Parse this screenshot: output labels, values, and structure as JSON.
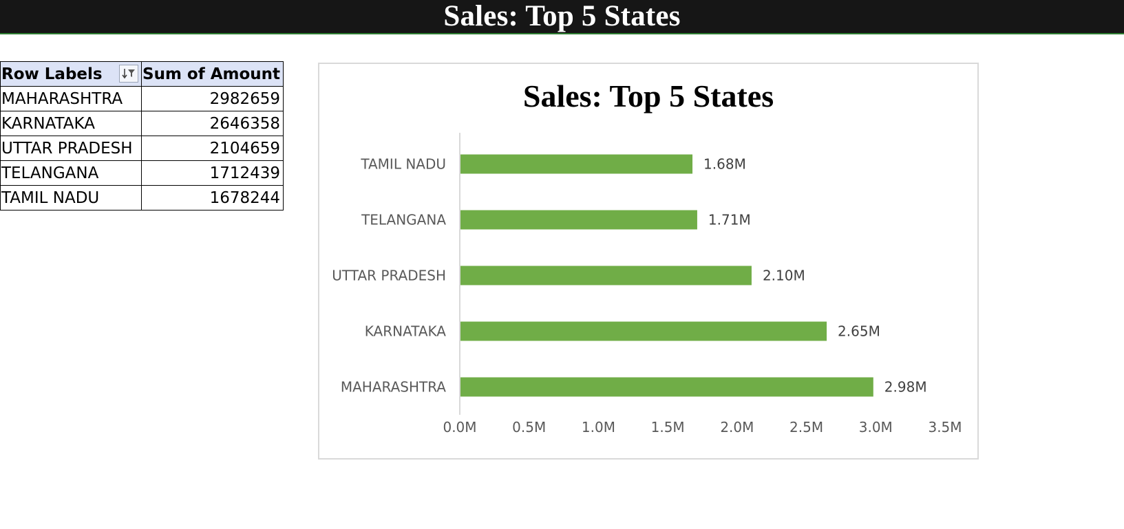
{
  "banner": {
    "title": "Sales: Top 5 States"
  },
  "pivot": {
    "headers": {
      "row_labels": "Row Labels",
      "sum_of_amount": "Sum of Amount"
    },
    "filter_icon": "sort-filter-icon",
    "rows": [
      {
        "label": "MAHARASHTRA",
        "value": "2982659"
      },
      {
        "label": "KARNATAKA",
        "value": "2646358"
      },
      {
        "label": "UTTAR PRADESH",
        "value": "2104659"
      },
      {
        "label": "TELANGANA",
        "value": "1712439"
      },
      {
        "label": "TAMIL NADU",
        "value": "1678244"
      }
    ]
  },
  "chart_data": {
    "type": "bar",
    "orientation": "horizontal",
    "title": "Sales: Top 5 States",
    "categories": [
      "TAMIL NADU",
      "TELANGANA",
      "UTTAR PRADESH",
      "KARNATAKA",
      "MAHARASHTRA"
    ],
    "values": [
      1678244,
      1712439,
      2104659,
      2646358,
      2982659
    ],
    "data_labels": [
      "1.68M",
      "1.71M",
      "2.10M",
      "2.65M",
      "2.98M"
    ],
    "xticks": [
      "0.0M",
      "0.5M",
      "1.0M",
      "1.5M",
      "2.0M",
      "2.5M",
      "3.0M",
      "3.5M"
    ],
    "xlim": [
      0,
      3500000
    ],
    "bar_color": "#70ad47",
    "grid": false,
    "legend": "none"
  }
}
